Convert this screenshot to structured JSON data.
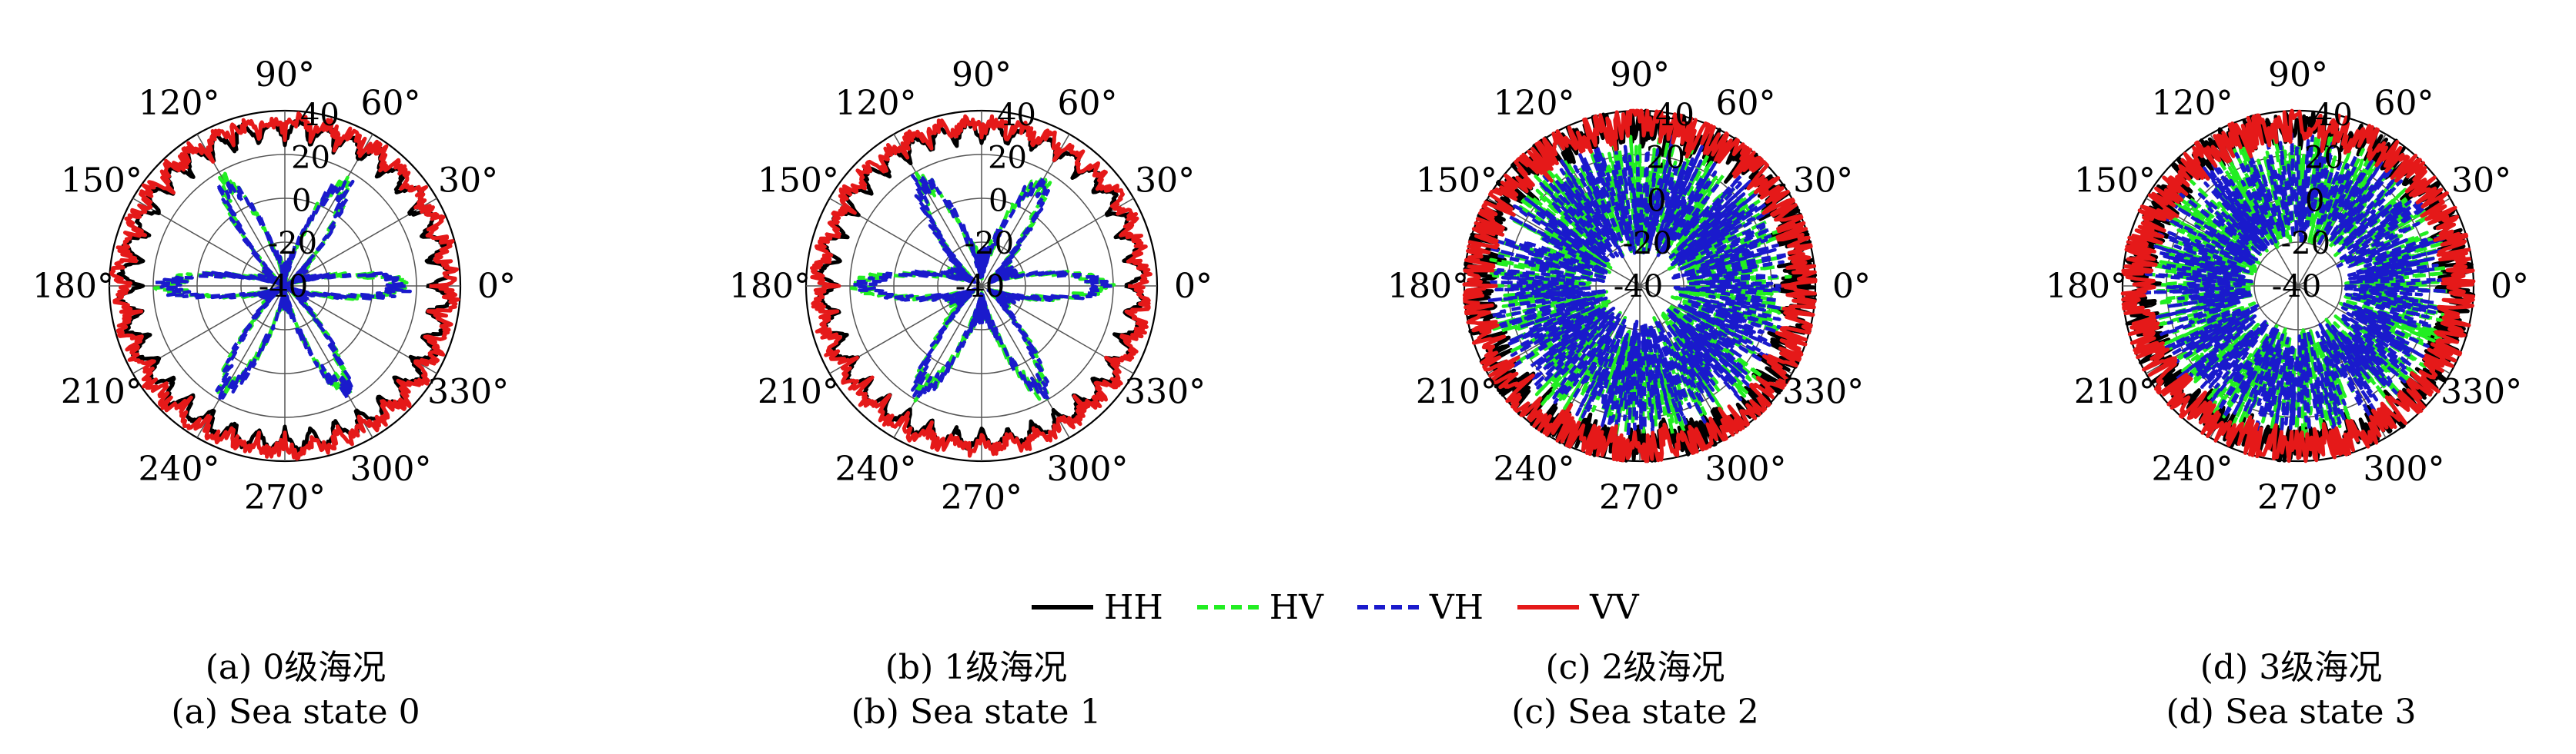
{
  "legend": [
    {
      "name": "HH",
      "color": "#000000",
      "dash": "solid"
    },
    {
      "name": "HV",
      "color": "#22ee22",
      "dash": "dash"
    },
    {
      "name": "VH",
      "color": "#1a1acc",
      "dash": "dash"
    },
    {
      "name": "VV",
      "color": "#e51919",
      "dash": "solid"
    }
  ],
  "chart_data": [
    {
      "type": "polar-line",
      "caption_cn": "(a) 0级海况",
      "caption_en": "(a) Sea state 0",
      "rlim": [
        -40,
        40
      ],
      "r_ticks": [
        "40",
        "20",
        "0",
        "-20",
        "-40"
      ],
      "theta_ticks": [
        "0°",
        "30°",
        "60°",
        "90°",
        "120°",
        "150°",
        "180°",
        "210°",
        "240°",
        "270°",
        "300°",
        "330°"
      ],
      "series": [
        {
          "name": "HH",
          "approx_level_db": 35,
          "ripple_db": [
            8,
            20
          ]
        },
        {
          "name": "HV",
          "approx_level_db": -5,
          "ripple_db": [
            -35,
            25
          ],
          "lobes": 6
        },
        {
          "name": "VH",
          "approx_level_db": -5,
          "ripple_db": [
            -35,
            25
          ],
          "lobes": 6
        },
        {
          "name": "VV",
          "approx_level_db": 36,
          "ripple_db": [
            15,
            42
          ]
        }
      ]
    },
    {
      "type": "polar-line",
      "caption_cn": "(b) 1级海况",
      "caption_en": "(b) Sea state 1",
      "rlim": [
        -40,
        40
      ],
      "r_ticks": [
        "40",
        "20",
        "0",
        "-20",
        "-40"
      ],
      "theta_ticks": [
        "0°",
        "30°",
        "60°",
        "90°",
        "120°",
        "150°",
        "180°",
        "210°",
        "240°",
        "270°",
        "300°",
        "330°"
      ],
      "series": [
        {
          "name": "HH",
          "approx_level_db": 34,
          "ripple_db": [
            10,
            20
          ]
        },
        {
          "name": "HV",
          "approx_level_db": -8,
          "ripple_db": [
            -30,
            25
          ],
          "lobes": 6
        },
        {
          "name": "VH",
          "approx_level_db": -8,
          "ripple_db": [
            -30,
            25
          ],
          "lobes": 6
        },
        {
          "name": "VV",
          "approx_level_db": 35,
          "ripple_db": [
            15,
            40
          ]
        }
      ]
    },
    {
      "type": "polar-line",
      "caption_cn": "(c) 2级海况",
      "caption_en": "(c) Sea state 2",
      "rlim": [
        -40,
        40
      ],
      "r_ticks": [
        "40",
        "20",
        "0",
        "-20",
        "-40"
      ],
      "theta_ticks": [
        "0°",
        "30°",
        "60°",
        "90°",
        "120°",
        "150°",
        "180°",
        "210°",
        "240°",
        "270°",
        "300°",
        "330°"
      ],
      "series": [
        {
          "name": "HH",
          "approx_level_db": 35,
          "ripple_db": [
            20,
            40
          ]
        },
        {
          "name": "HV",
          "approx_level_db": 10,
          "ripple_db": [
            -25,
            30
          ]
        },
        {
          "name": "VH",
          "approx_level_db": 10,
          "ripple_db": [
            -25,
            30
          ]
        },
        {
          "name": "VV",
          "approx_level_db": 36,
          "ripple_db": [
            22,
            42
          ]
        }
      ]
    },
    {
      "type": "polar-line",
      "caption_cn": "(d) 3级海况",
      "caption_en": "(d) Sea state 3",
      "rlim": [
        -40,
        40
      ],
      "r_ticks": [
        "40",
        "20",
        "0",
        "-20",
        "-40"
      ],
      "theta_ticks": [
        "0°",
        "30°",
        "60°",
        "90°",
        "120°",
        "150°",
        "180°",
        "210°",
        "240°",
        "270°",
        "300°",
        "330°"
      ],
      "series": [
        {
          "name": "HH",
          "approx_level_db": 33,
          "ripple_db": [
            22,
            40
          ]
        },
        {
          "name": "HV",
          "approx_level_db": 15,
          "ripple_db": [
            -20,
            30
          ]
        },
        {
          "name": "VH",
          "approx_level_db": 15,
          "ripple_db": [
            -20,
            30
          ]
        },
        {
          "name": "VV",
          "approx_level_db": 34,
          "ripple_db": [
            24,
            42
          ]
        }
      ]
    }
  ]
}
